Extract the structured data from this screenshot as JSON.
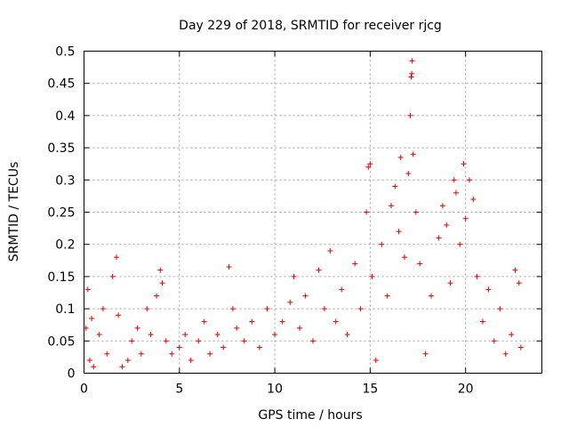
{
  "chart_data": {
    "type": "scatter",
    "title": "Day 229 of 2018, SRMTID for receiver rjcg",
    "xlabel": "GPS time / hours",
    "ylabel": "SRMTID / TECUs",
    "xlim": [
      0,
      24
    ],
    "ylim": [
      0,
      0.5
    ],
    "xticks": [
      0,
      5,
      10,
      15,
      20
    ],
    "yticks": [
      0,
      0.05,
      0.1,
      0.15,
      0.2,
      0.25,
      0.3,
      0.35,
      0.4,
      0.45,
      0.5
    ],
    "xtick_labels": [
      "0",
      "5",
      "10",
      "15",
      "20"
    ],
    "ytick_labels": [
      "0",
      "0.05",
      "0.1",
      "0.15",
      "0.2",
      "0.25",
      "0.3",
      "0.35",
      "0.4",
      "0.45",
      "0.5"
    ],
    "grid": true,
    "marker": "+",
    "color": "#e00000",
    "series": [
      {
        "name": "SRMTID",
        "points": [
          [
            0.1,
            0.07
          ],
          [
            0.2,
            0.13
          ],
          [
            0.3,
            0.02
          ],
          [
            0.4,
            0.085
          ],
          [
            0.5,
            0.01
          ],
          [
            0.8,
            0.06
          ],
          [
            1.0,
            0.1
          ],
          [
            1.2,
            0.03
          ],
          [
            1.5,
            0.15
          ],
          [
            1.7,
            0.18
          ],
          [
            1.8,
            0.09
          ],
          [
            2.0,
            0.01
          ],
          [
            2.3,
            0.02
          ],
          [
            2.5,
            0.05
          ],
          [
            2.8,
            0.07
          ],
          [
            3.0,
            0.03
          ],
          [
            3.3,
            0.1
          ],
          [
            3.5,
            0.06
          ],
          [
            3.8,
            0.12
          ],
          [
            4.0,
            0.16
          ],
          [
            4.1,
            0.14
          ],
          [
            4.3,
            0.05
          ],
          [
            4.6,
            0.03
          ],
          [
            5.0,
            0.04
          ],
          [
            5.3,
            0.06
          ],
          [
            5.6,
            0.02
          ],
          [
            6.0,
            0.05
          ],
          [
            6.3,
            0.08
          ],
          [
            6.6,
            0.03
          ],
          [
            7.0,
            0.06
          ],
          [
            7.3,
            0.04
          ],
          [
            7.6,
            0.165
          ],
          [
            7.8,
            0.1
          ],
          [
            8.0,
            0.07
          ],
          [
            8.4,
            0.05
          ],
          [
            8.8,
            0.08
          ],
          [
            9.2,
            0.04
          ],
          [
            9.6,
            0.1
          ],
          [
            10.0,
            0.06
          ],
          [
            10.4,
            0.08
          ],
          [
            10.8,
            0.11
          ],
          [
            11.0,
            0.15
          ],
          [
            11.3,
            0.07
          ],
          [
            11.6,
            0.12
          ],
          [
            12.0,
            0.05
          ],
          [
            12.3,
            0.16
          ],
          [
            12.6,
            0.1
          ],
          [
            12.9,
            0.19
          ],
          [
            13.2,
            0.08
          ],
          [
            13.5,
            0.13
          ],
          [
            13.8,
            0.06
          ],
          [
            14.2,
            0.17
          ],
          [
            14.5,
            0.1
          ],
          [
            14.8,
            0.25
          ],
          [
            14.9,
            0.32
          ],
          [
            15.0,
            0.325
          ],
          [
            15.1,
            0.15
          ],
          [
            15.3,
            0.02
          ],
          [
            15.6,
            0.2
          ],
          [
            15.9,
            0.12
          ],
          [
            16.1,
            0.26
          ],
          [
            16.3,
            0.29
          ],
          [
            16.5,
            0.22
          ],
          [
            16.6,
            0.335
          ],
          [
            16.8,
            0.18
          ],
          [
            17.0,
            0.31
          ],
          [
            17.1,
            0.4
          ],
          [
            17.15,
            0.46
          ],
          [
            17.18,
            0.465
          ],
          [
            17.2,
            0.485
          ],
          [
            17.25,
            0.34
          ],
          [
            17.4,
            0.25
          ],
          [
            17.6,
            0.17
          ],
          [
            17.9,
            0.03
          ],
          [
            18.2,
            0.12
          ],
          [
            18.6,
            0.21
          ],
          [
            18.8,
            0.26
          ],
          [
            19.0,
            0.23
          ],
          [
            19.2,
            0.14
          ],
          [
            19.4,
            0.3
          ],
          [
            19.5,
            0.28
          ],
          [
            19.7,
            0.2
          ],
          [
            19.9,
            0.325
          ],
          [
            20.0,
            0.24
          ],
          [
            20.2,
            0.3
          ],
          [
            20.4,
            0.27
          ],
          [
            20.6,
            0.15
          ],
          [
            20.9,
            0.08
          ],
          [
            21.2,
            0.13
          ],
          [
            21.5,
            0.05
          ],
          [
            21.8,
            0.1
          ],
          [
            22.1,
            0.03
          ],
          [
            22.4,
            0.06
          ],
          [
            22.6,
            0.16
          ],
          [
            22.8,
            0.14
          ],
          [
            22.9,
            0.04
          ]
        ]
      }
    ]
  }
}
